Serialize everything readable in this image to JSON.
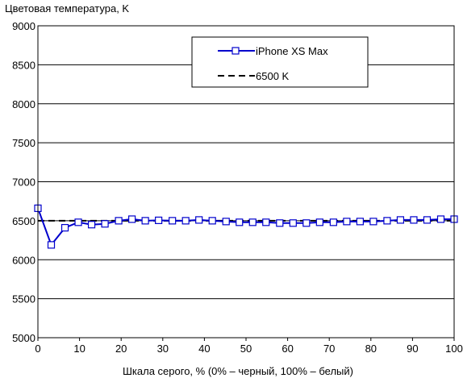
{
  "chart_data": {
    "type": "line",
    "ylabel": "Цветовая температура, K",
    "xlabel": "Шкала серого, % (0% – черный, 100% – белый)",
    "xlim": [
      0,
      100
    ],
    "ylim": [
      5000,
      9000
    ],
    "xticks": [
      0,
      10,
      20,
      30,
      40,
      50,
      60,
      70,
      80,
      90,
      100
    ],
    "yticks": [
      5000,
      5500,
      6000,
      6500,
      7000,
      7500,
      8000,
      8500,
      9000
    ],
    "grid": "horizontal",
    "legend_position": "top-right",
    "series": [
      {
        "name": "iPhone XS Max",
        "color": "#0000cc",
        "marker": "open-square",
        "x": [
          0,
          3.2,
          6.5,
          9.7,
          12.9,
          16.1,
          19.4,
          22.6,
          25.8,
          29.0,
          32.3,
          35.5,
          38.7,
          41.9,
          45.2,
          48.4,
          51.6,
          54.8,
          58.1,
          61.3,
          64.5,
          67.7,
          71.0,
          74.2,
          77.4,
          80.6,
          83.9,
          87.1,
          90.3,
          93.5,
          96.8,
          100
        ],
        "y": [
          6660,
          6190,
          6410,
          6480,
          6450,
          6460,
          6500,
          6520,
          6500,
          6505,
          6500,
          6500,
          6510,
          6500,
          6490,
          6480,
          6480,
          6480,
          6470,
          6470,
          6470,
          6480,
          6480,
          6490,
          6490,
          6490,
          6500,
          6510,
          6510,
          6510,
          6520,
          6520
        ]
      },
      {
        "name": "6500 K",
        "color": "#000000",
        "style": "dashed",
        "x": [
          0,
          100
        ],
        "y": [
          6500,
          6500
        ]
      }
    ]
  }
}
